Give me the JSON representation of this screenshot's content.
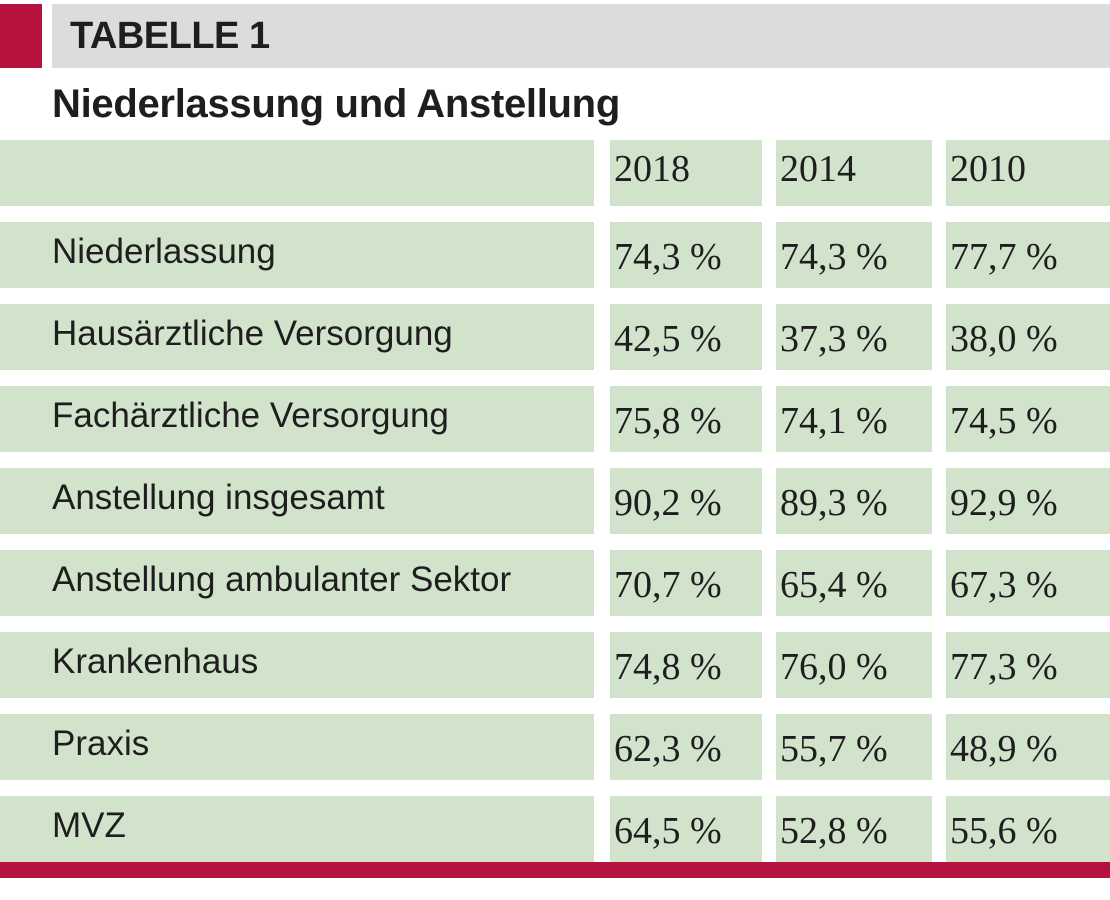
{
  "header": {
    "table_label": "TABELLE 1",
    "title": "Niederlassung und Anstellung"
  },
  "colors": {
    "accent": "#b5123e",
    "header_gray": "#dcdcdc",
    "cell_green": "#d2e3cc"
  },
  "chart_data": {
    "type": "table",
    "title": "Niederlassung und Anstellung",
    "columns": [
      "2018",
      "2014",
      "2010"
    ],
    "rows": [
      {
        "label": "Niederlassung",
        "values": [
          "74,3 %",
          "74,3 %",
          "77,7 %"
        ]
      },
      {
        "label": "Hausärztliche Versorgung",
        "values": [
          "42,5 %",
          "37,3 %",
          "38,0 %"
        ]
      },
      {
        "label": "Fachärztliche Versorgung",
        "values": [
          "75,8 %",
          "74,1 %",
          "74,5 %"
        ]
      },
      {
        "label": "Anstellung insgesamt",
        "values": [
          "90,2 %",
          "89,3 %",
          "92,9 %"
        ]
      },
      {
        "label": "Anstellung ambulanter Sektor",
        "values": [
          "70,7 %",
          "65,4 %",
          "67,3 %"
        ]
      },
      {
        "label": "Krankenhaus",
        "values": [
          "74,8 %",
          "76,0 %",
          "77,3 %"
        ]
      },
      {
        "label": "Praxis",
        "values": [
          "62,3 %",
          "55,7 %",
          "48,9 %"
        ]
      },
      {
        "label": "MVZ",
        "values": [
          "64,5 %",
          "52,8 %",
          "55,6 %"
        ]
      }
    ]
  }
}
